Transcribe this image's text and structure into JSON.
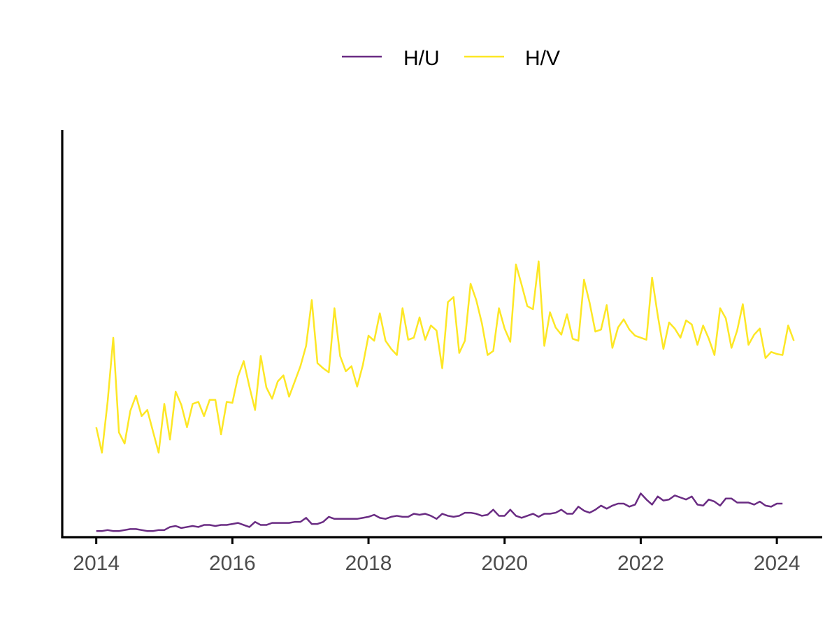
{
  "chart_data": {
    "type": "line",
    "title": "",
    "xlabel": "",
    "ylabel": "",
    "x_axis": {
      "type": "date",
      "range": [
        "2013-07-01",
        "2024-09-01"
      ],
      "ticks": [
        {
          "value": "2014-01-01",
          "label": "2014"
        },
        {
          "value": "2016-01-01",
          "label": "2016"
        },
        {
          "value": "2018-01-01",
          "label": "2018"
        },
        {
          "value": "2020-01-01",
          "label": "2020"
        },
        {
          "value": "2022-01-01",
          "label": "2022"
        },
        {
          "value": "2024-01-01",
          "label": "2024"
        }
      ]
    },
    "y_axis": {
      "tick_labels_shown": false,
      "range": [
        -0.3,
        39.7
      ]
    },
    "grid": false,
    "legend": {
      "position": "top"
    },
    "series": [
      {
        "name": "H/U",
        "color": "#6A2C83",
        "start": "2014-01",
        "frequency": "monthly",
        "values": [
          0.3,
          0.3,
          0.4,
          0.3,
          0.3,
          0.4,
          0.5,
          0.5,
          0.4,
          0.3,
          0.3,
          0.4,
          0.4,
          0.7,
          0.8,
          0.6,
          0.7,
          0.8,
          0.7,
          0.9,
          0.9,
          0.8,
          0.9,
          0.9,
          1.0,
          1.1,
          0.9,
          0.7,
          1.2,
          0.9,
          0.9,
          1.1,
          1.1,
          1.1,
          1.1,
          1.2,
          1.2,
          1.6,
          1.0,
          1.0,
          1.2,
          1.7,
          1.5,
          1.5,
          1.5,
          1.5,
          1.5,
          1.6,
          1.7,
          1.9,
          1.6,
          1.5,
          1.7,
          1.8,
          1.7,
          1.7,
          2.0,
          1.9,
          2.0,
          1.8,
          1.5,
          2.0,
          1.8,
          1.7,
          1.8,
          2.1,
          2.1,
          2.0,
          1.8,
          1.9,
          2.4,
          1.8,
          1.8,
          2.4,
          1.8,
          1.6,
          1.8,
          2.0,
          1.7,
          2.0,
          2.0,
          2.1,
          2.4,
          2.0,
          2.0,
          2.7,
          2.3,
          2.1,
          2.4,
          2.8,
          2.5,
          2.8,
          3.0,
          3.0,
          2.7,
          2.9,
          4.0,
          3.4,
          2.9,
          3.7,
          3.3,
          3.4,
          3.8,
          3.6,
          3.4,
          3.7,
          2.9,
          2.8,
          3.4,
          3.2,
          2.8,
          3.5,
          3.5,
          3.1,
          3.1,
          3.1,
          2.9,
          3.2,
          2.8,
          2.7,
          3.0,
          3.0
        ]
      },
      {
        "name": "H/V",
        "color": "#FDE725",
        "start": "2014-01",
        "frequency": "monthly",
        "values": [
          10.5,
          8.0,
          13.0,
          19.3,
          10.0,
          8.9,
          12.1,
          13.6,
          11.6,
          12.2,
          10.1,
          8.0,
          12.8,
          9.3,
          14.0,
          12.7,
          10.5,
          12.8,
          13.0,
          11.6,
          13.2,
          13.2,
          9.8,
          13.0,
          12.9,
          15.5,
          17.0,
          14.5,
          12.2,
          17.5,
          14.4,
          13.3,
          15.0,
          15.6,
          13.5,
          15.0,
          16.5,
          18.5,
          23.0,
          16.8,
          16.3,
          15.9,
          22.2,
          17.5,
          16.0,
          16.5,
          14.5,
          16.6,
          19.5,
          19.0,
          21.7,
          19.0,
          18.2,
          17.6,
          22.2,
          19.1,
          19.3,
          21.3,
          19.1,
          20.5,
          20.0,
          16.3,
          22.8,
          23.3,
          17.8,
          19.0,
          24.6,
          23.0,
          20.7,
          17.6,
          18.0,
          22.2,
          20.2,
          18.9,
          26.5,
          24.5,
          22.4,
          22.1,
          26.8,
          18.5,
          21.8,
          20.3,
          19.6,
          21.6,
          19.2,
          19.0,
          25.0,
          22.7,
          19.9,
          20.1,
          22.5,
          18.3,
          20.3,
          21.1,
          20.1,
          19.5,
          19.3,
          19.1,
          25.2,
          21.5,
          18.2,
          20.8,
          20.2,
          19.3,
          21.0,
          20.6,
          18.6,
          20.5,
          19.2,
          17.6,
          22.2,
          21.2,
          18.3,
          20.0,
          22.6,
          18.6,
          19.6,
          20.2,
          17.3,
          17.9,
          17.7,
          17.6,
          20.5,
          19.0
        ]
      }
    ]
  }
}
